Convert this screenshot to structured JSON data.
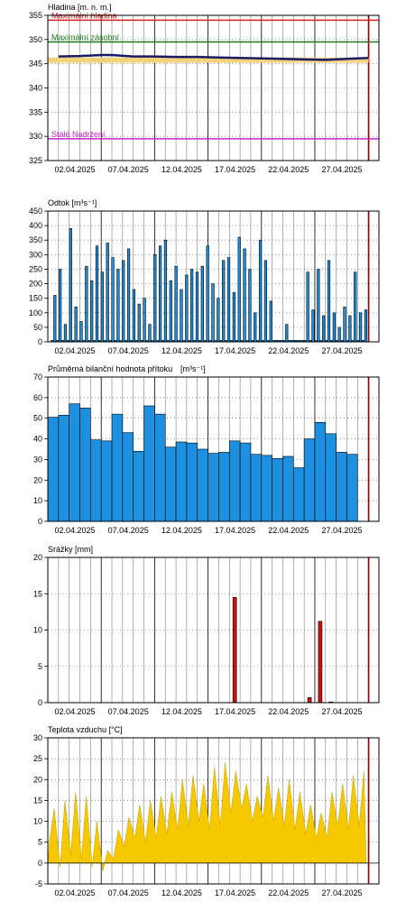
{
  "dates": [
    "02.04.2025",
    "07.04.2025",
    "12.04.2025",
    "17.04.2025",
    "22.04.2025",
    "27.04.2025"
  ],
  "colors": {
    "max_level": "#e02020",
    "max_storage": "#1a7a1a",
    "permanent": "#cc22cc",
    "level_line": "#1a1a66",
    "level_band": "#f2d27a",
    "discharge": "#1e90e0",
    "inflow": "#1e90e0",
    "precip": "#cc1010",
    "temp": "#f5c800",
    "now_line": "#e02020"
  },
  "chart_data": [
    {
      "type": "line",
      "title": "Hladina [m. n. m.]",
      "ylim": [
        325,
        355
      ],
      "yticks": [
        325,
        330,
        335,
        340,
        345,
        350,
        355
      ],
      "annotations": [
        {
          "label": "Maximální hladina",
          "y": 354
        },
        {
          "label": "Maximální zásobní",
          "y": 349.5
        },
        {
          "label": "Stálé Nadržení",
          "y": 329.5
        }
      ],
      "series": [
        {
          "x": [
            1,
            3,
            5,
            6,
            8,
            10,
            12,
            14,
            16,
            18,
            20,
            22,
            24,
            26,
            28,
            30
          ],
          "values": [
            346.5,
            346.6,
            346.8,
            346.8,
            346.5,
            346.5,
            346.4,
            346.4,
            346.3,
            346.2,
            346.1,
            346.0,
            345.9,
            345.8,
            346.0,
            346.2
          ]
        }
      ]
    },
    {
      "type": "bar",
      "title": "Odtok [m³s⁻¹]",
      "ylim": [
        0,
        450
      ],
      "yticks": [
        0,
        50,
        100,
        150,
        200,
        250,
        300,
        350,
        400,
        450
      ],
      "values": [
        5,
        160,
        5,
        250,
        5,
        60,
        5,
        390,
        5,
        120,
        5,
        70,
        5,
        260,
        5,
        210,
        5,
        330,
        5,
        240,
        5,
        340,
        5,
        290,
        5,
        250,
        5,
        280,
        5,
        320,
        5,
        180,
        5,
        130,
        5,
        150,
        5,
        60,
        5,
        300,
        5,
        330,
        5,
        350,
        5,
        210,
        5,
        260,
        5,
        180,
        5,
        230,
        5,
        250,
        5,
        240,
        5,
        260,
        5,
        330,
        5,
        200,
        5,
        150,
        5,
        280,
        5,
        290,
        5,
        170,
        5,
        360,
        5,
        320,
        5,
        250,
        5,
        100,
        5,
        350,
        5,
        280,
        5,
        140,
        5,
        5,
        5,
        5,
        5,
        60,
        5,
        5,
        5,
        5,
        5,
        5,
        5,
        240,
        5,
        110,
        5,
        250,
        5,
        90,
        5,
        280,
        5,
        100,
        5,
        50,
        5,
        120,
        5,
        90,
        5,
        240,
        5,
        100,
        5,
        110
      ]
    },
    {
      "type": "bar",
      "title": "Průměrná bilanční hodnota přítoku",
      "unit": "[m³s⁻¹]",
      "ylim": [
        0,
        70
      ],
      "yticks": [
        0,
        10,
        20,
        30,
        40,
        50,
        60,
        70
      ],
      "values": [
        50.5,
        51.5,
        57,
        55,
        39.5,
        39,
        52,
        43,
        34,
        56,
        52,
        36,
        38.5,
        38,
        35,
        33,
        33.5,
        39,
        38,
        32.5,
        32,
        30.5,
        31.5,
        26,
        40,
        48,
        42.5,
        33.5,
        32.5
      ]
    },
    {
      "type": "bar",
      "title": "Srážky [mm]",
      "ylim": [
        0,
        20
      ],
      "yticks": [
        0,
        5,
        10,
        15,
        20
      ],
      "bars": [
        {
          "day": 17.5,
          "value": 14.5
        },
        {
          "day": 24.5,
          "value": 0.7
        },
        {
          "day": 25.5,
          "value": 11.2
        },
        {
          "day": 26.5,
          "value": 0.1
        }
      ]
    },
    {
      "type": "area",
      "title": "Teplota vzduchu [°C]",
      "ylim": [
        -5,
        30
      ],
      "yticks": [
        -5,
        0,
        5,
        10,
        15,
        20,
        25,
        30
      ],
      "daily_min": [
        5,
        -1,
        2,
        1,
        -1,
        -2,
        1,
        4,
        6,
        5,
        6,
        7,
        8,
        9,
        10,
        8,
        9,
        12,
        13,
        10,
        11,
        10,
        9,
        8,
        7,
        6,
        6,
        9,
        8,
        9
      ],
      "daily_max": [
        13,
        15,
        17,
        16,
        10,
        3,
        8,
        11,
        14,
        15,
        16,
        17,
        20,
        21,
        19,
        23,
        24,
        22,
        19,
        16,
        21,
        18,
        20,
        17,
        14,
        12,
        17,
        19,
        21,
        22
      ]
    }
  ]
}
